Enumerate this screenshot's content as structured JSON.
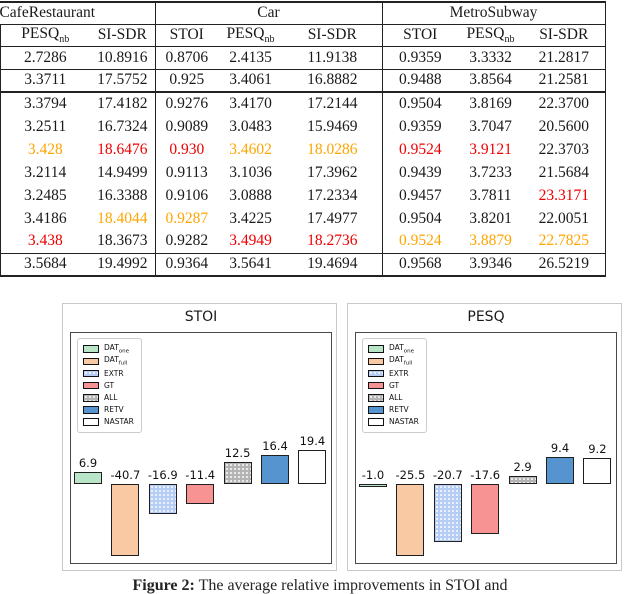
{
  "table": {
    "groups": [
      {
        "label": "CafeRestaurant"
      },
      {
        "label": "Car"
      },
      {
        "label": "MetroSubway"
      }
    ],
    "headers": [
      {
        "main": "PESQ",
        "sub": "nb"
      },
      {
        "main": "SI-SDR",
        "sub": ""
      },
      {
        "main": "STOI",
        "sub": ""
      },
      {
        "main": "PESQ",
        "sub": "nb"
      },
      {
        "main": "SI-SDR",
        "sub": ""
      },
      {
        "main": "STOI",
        "sub": ""
      },
      {
        "main": "PESQ",
        "sub": "nb"
      },
      {
        "main": "SI-SDR",
        "sub": ""
      }
    ],
    "color_map": {
      "k": "#1a1a1a",
      "o": "#FFA500",
      "r": "#EE0000"
    },
    "rows": [
      [
        [
          "2.7286",
          "k"
        ],
        [
          "10.8916",
          "k"
        ],
        [
          "0.8706",
          "k"
        ],
        [
          "2.4135",
          "k"
        ],
        [
          "11.9138",
          "k"
        ],
        [
          "0.9359",
          "k"
        ],
        [
          "3.3332",
          "k"
        ],
        [
          "21.2817",
          "k"
        ]
      ],
      [
        [
          "3.3711",
          "k"
        ],
        [
          "17.5752",
          "k"
        ],
        [
          "0.925",
          "k"
        ],
        [
          "3.4061",
          "k"
        ],
        [
          "16.8882",
          "k"
        ],
        [
          "0.9488",
          "k"
        ],
        [
          "3.8564",
          "k"
        ],
        [
          "21.2581",
          "k"
        ]
      ],
      [
        [
          "3.3794",
          "k"
        ],
        [
          "17.4182",
          "k"
        ],
        [
          "0.9276",
          "k"
        ],
        [
          "3.4170",
          "k"
        ],
        [
          "17.2144",
          "k"
        ],
        [
          "0.9504",
          "k"
        ],
        [
          "3.8169",
          "k"
        ],
        [
          "22.3700",
          "k"
        ]
      ],
      [
        [
          "3.2511",
          "k"
        ],
        [
          "16.7324",
          "k"
        ],
        [
          "0.9089",
          "k"
        ],
        [
          "3.0483",
          "k"
        ],
        [
          "15.9469",
          "k"
        ],
        [
          "0.9359",
          "k"
        ],
        [
          "3.7047",
          "k"
        ],
        [
          "20.5600",
          "k"
        ]
      ],
      [
        [
          "3.428",
          "o"
        ],
        [
          "18.6476",
          "r"
        ],
        [
          "0.930",
          "r"
        ],
        [
          "3.4602",
          "o"
        ],
        [
          "18.0286",
          "o"
        ],
        [
          "0.9524",
          "r"
        ],
        [
          "3.9121",
          "r"
        ],
        [
          "22.3703",
          "k"
        ]
      ],
      [
        [
          "3.2114",
          "k"
        ],
        [
          "14.9499",
          "k"
        ],
        [
          "0.9113",
          "k"
        ],
        [
          "3.1036",
          "k"
        ],
        [
          "17.3962",
          "k"
        ],
        [
          "0.9439",
          "k"
        ],
        [
          "3.7233",
          "k"
        ],
        [
          "21.5684",
          "k"
        ]
      ],
      [
        [
          "3.2485",
          "k"
        ],
        [
          "16.3388",
          "k"
        ],
        [
          "0.9106",
          "k"
        ],
        [
          "3.0888",
          "k"
        ],
        [
          "17.2334",
          "k"
        ],
        [
          "0.9457",
          "k"
        ],
        [
          "3.7811",
          "k"
        ],
        [
          "23.3171",
          "r"
        ]
      ],
      [
        [
          "3.4186",
          "k"
        ],
        [
          "18.4044",
          "o"
        ],
        [
          "0.9287",
          "o"
        ],
        [
          "3.4225",
          "k"
        ],
        [
          "17.4977",
          "k"
        ],
        [
          "0.9504",
          "k"
        ],
        [
          "3.8201",
          "k"
        ],
        [
          "22.0051",
          "k"
        ]
      ],
      [
        [
          "3.438",
          "r"
        ],
        [
          "18.3673",
          "k"
        ],
        [
          "0.9282",
          "k"
        ],
        [
          "3.4949",
          "r"
        ],
        [
          "18.2736",
          "r"
        ],
        [
          "0.9524",
          "o"
        ],
        [
          "3.8879",
          "o"
        ],
        [
          "22.7825",
          "o"
        ]
      ],
      [
        [
          "3.5684",
          "k"
        ],
        [
          "19.4992",
          "k"
        ],
        [
          "0.9364",
          "k"
        ],
        [
          "3.5641",
          "k"
        ],
        [
          "19.4694",
          "k"
        ],
        [
          "0.9568",
          "k"
        ],
        [
          "3.9346",
          "k"
        ],
        [
          "26.5219",
          "k"
        ]
      ]
    ]
  },
  "legend": {
    "items": [
      {
        "label": "DAT",
        "sub": "one",
        "color": "#b9e6c9",
        "hatch": false
      },
      {
        "label": "DAT",
        "sub": "full",
        "color": "#f9c9a3",
        "hatch": false
      },
      {
        "label": "EXTR",
        "sub": "",
        "color": "#b5cdf5",
        "hatch": true
      },
      {
        "label": "GT",
        "sub": "",
        "color": "#f89394",
        "hatch": false
      },
      {
        "label": "ALL",
        "sub": "",
        "color": "#b4b4b4",
        "hatch": true
      },
      {
        "label": "RETV",
        "sub": "",
        "color": "#5694d0",
        "hatch": false
      },
      {
        "label": "NASTAR",
        "sub": "",
        "color": "#ffffff",
        "hatch": false
      }
    ]
  },
  "chart_data": [
    {
      "type": "bar",
      "title": "STOI",
      "categories": [
        "DAT_one",
        "DAT_full",
        "EXTR",
        "GT",
        "ALL",
        "RETV",
        "NASTAR"
      ],
      "values": [
        6.9,
        -40.7,
        -16.9,
        -11.4,
        12.5,
        16.4,
        19.4
      ],
      "labels": [
        "6.9",
        "-40.7",
        "-16.9",
        "-11.4",
        "12.5",
        "16.4",
        "19.4"
      ],
      "xlabel": "",
      "ylabel": "",
      "grid": false,
      "legend_position": "upper left",
      "bar_labels": true
    },
    {
      "type": "bar",
      "title": "PESQ",
      "categories": [
        "DAT_one",
        "DAT_full",
        "EXTR",
        "GT",
        "ALL",
        "RETV",
        "NASTAR"
      ],
      "values": [
        -1.0,
        -25.5,
        -20.7,
        -17.6,
        2.9,
        9.4,
        9.2
      ],
      "labels": [
        "-1.0",
        "-25.5",
        "-20.7",
        "-17.6",
        "2.9",
        "9.4",
        "9.2"
      ],
      "xlabel": "",
      "ylabel": "",
      "grid": false,
      "legend_position": "upper left",
      "bar_labels": true
    }
  ],
  "caption": {
    "prefix": "Figure 2:",
    "text": " The average relative improvements in STOI and"
  }
}
